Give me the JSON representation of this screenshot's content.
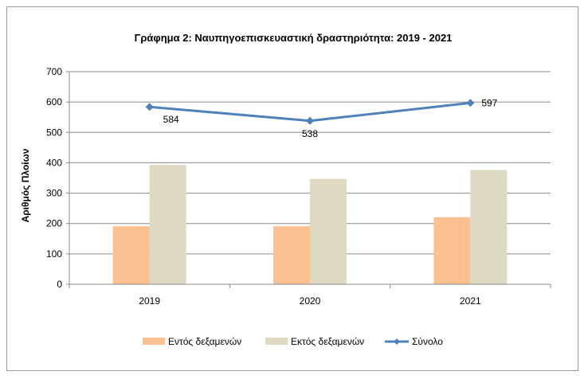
{
  "chart_data": {
    "type": "bar",
    "title": "Γράφημα 2: Ναυπηγοεπισκευαστική δραστηριότητα: 2019 - 2021",
    "xlabel": "",
    "ylabel": "Αριθμός Πλοίων",
    "categories": [
      "2019",
      "2020",
      "2021"
    ],
    "ylim": [
      0,
      700
    ],
    "yticks": [
      0,
      100,
      200,
      300,
      400,
      500,
      600,
      700
    ],
    "grid": true,
    "legend_position": "bottom",
    "series": [
      {
        "name": "Εντός δεξαμενών",
        "type": "bar",
        "color": "#FAC090",
        "values": [
          191,
          191,
          221
        ]
      },
      {
        "name": "Εκτός δεξαμενών",
        "type": "bar",
        "color": "#DDD9C3",
        "values": [
          393,
          347,
          376
        ]
      },
      {
        "name": "Σύνολο",
        "type": "line",
        "color": "#4F81BD",
        "values": [
          584,
          538,
          597
        ],
        "data_labels": [
          "584",
          "538",
          "597"
        ]
      }
    ]
  }
}
